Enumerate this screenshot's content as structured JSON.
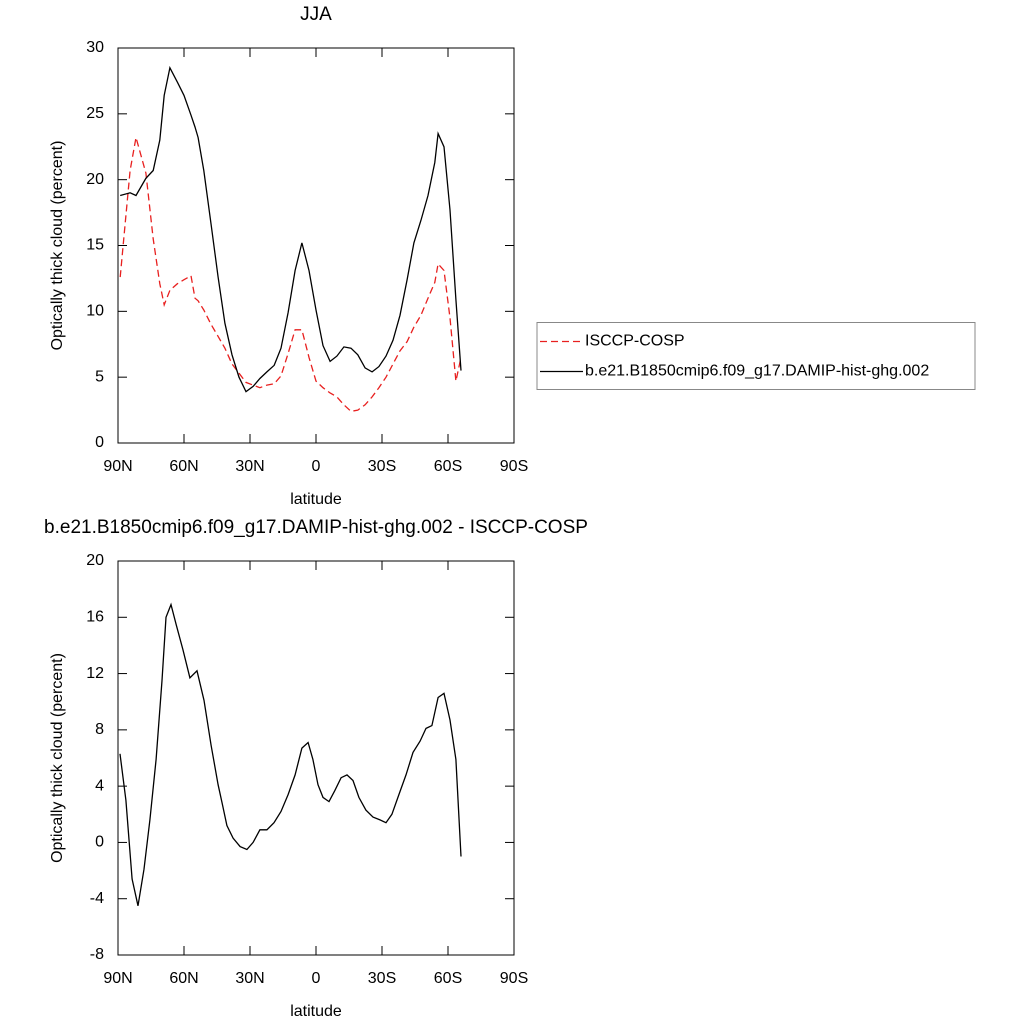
{
  "chart_data": [
    {
      "type": "line",
      "title": "JJA",
      "xlabel": "latitude",
      "ylabel": "Optically thick cloud (percent)",
      "x": [
        89,
        84.5,
        81.8,
        77.3,
        74,
        71,
        69,
        66.4,
        63,
        60,
        56.8,
        55,
        53.6,
        51,
        47.7,
        44.5,
        41.4,
        38.2,
        35,
        31.8,
        28.6,
        25.5,
        22.3,
        19,
        15.9,
        12.7,
        9.5,
        6.4,
        3.2,
        0,
        -3.2,
        -6.4,
        -9.5,
        -12.7,
        -15.9,
        -19,
        -22.3,
        -25.5,
        -28.6,
        -31.8,
        -35,
        -38.2,
        -41.4,
        -44.5,
        -47.7,
        -50.9,
        -54,
        -55.5,
        -58.2,
        -60.9,
        -63.6,
        -65.9
      ],
      "series": [
        {
          "name": "ISCCP-COSP",
          "color": "#e8201f",
          "linestyle": "dashed",
          "values": [
            12.6,
            20.7,
            23.2,
            20.5,
            15.5,
            12.1,
            10.5,
            11.6,
            12.1,
            12.4,
            12.7,
            11.0,
            10.8,
            10.1,
            9.0,
            8.1,
            7.2,
            6.0,
            5.3,
            4.6,
            4.4,
            4.2,
            4.4,
            4.5,
            5.1,
            6.8,
            8.6,
            8.6,
            6.5,
            4.7,
            4.2,
            3.8,
            3.5,
            2.9,
            2.4,
            2.5,
            2.9,
            3.5,
            4.2,
            5.0,
            6.0,
            7.0,
            7.7,
            8.8,
            9.7,
            11.0,
            12.2,
            13.6,
            13.1,
            9.5,
            4.7,
            6.5
          ]
        },
        {
          "name": "b.e21.B1850cmip6.f09_g17.DAMIP-hist-ghg.002",
          "color": "#000000",
          "linestyle": "solid",
          "values": [
            18.8,
            19.0,
            18.8,
            20.1,
            20.7,
            23,
            26.4,
            28.5,
            27.4,
            26.4,
            24.9,
            24.0,
            23.2,
            20.7,
            16.6,
            12.6,
            9.1,
            6.7,
            5.0,
            3.9,
            4.3,
            4.9,
            5.4,
            5.9,
            7.2,
            9.9,
            13.1,
            15.2,
            13.1,
            10.1,
            7.4,
            6.2,
            6.6,
            7.3,
            7.2,
            6.7,
            5.7,
            5.4,
            5.8,
            6.6,
            7.8,
            9.7,
            12.4,
            15.2,
            16.9,
            18.8,
            21.3,
            23.5,
            22.5,
            17.7,
            10.9,
            5.5
          ]
        }
      ],
      "xlim": [
        90,
        -90
      ],
      "xticks": [
        {
          "value": 90,
          "label": "90N"
        },
        {
          "value": 60,
          "label": "60N"
        },
        {
          "value": 30,
          "label": "30N"
        },
        0,
        {
          "value": -30,
          "label": "30S"
        },
        {
          "value": -60,
          "label": "60S"
        },
        {
          "value": -90,
          "label": "90S"
        }
      ],
      "ylim": [
        0,
        30
      ],
      "yticks": [
        0,
        5,
        10,
        15,
        20,
        25,
        30
      ],
      "legend": "right"
    },
    {
      "type": "line",
      "title": "b.e21.B1850cmip6.f09_g17.DAMIP-hist-ghg.002 - ISCCP-COSP",
      "xlabel": "latitude",
      "ylabel": "Optically thick cloud (percent)",
      "x": [
        89.1,
        86.4,
        83.6,
        80.9,
        78.2,
        75.5,
        72.7,
        70,
        68.2,
        65.9,
        63.6,
        60.5,
        57.3,
        54.1,
        50.9,
        47.7,
        44.5,
        42.7,
        40.5,
        37.7,
        34.5,
        31.4,
        28.6,
        25.5,
        22.3,
        19.1,
        15.9,
        12.7,
        9.5,
        6.4,
        3.6,
        1.4,
        -0.9,
        -3.2,
        -5.9,
        -8.6,
        -11.4,
        -14.1,
        -16.8,
        -19.5,
        -22.7,
        -25.9,
        -29.1,
        -31.8,
        -34.5,
        -37.7,
        -40.9,
        -44.1,
        -47.3,
        -50,
        -52.7,
        -55.5,
        -58.2,
        -60.9,
        -63.6,
        -65.9
      ],
      "series": [
        {
          "color": "#000000",
          "linestyle": "solid",
          "values": [
            6.3,
            3.0,
            -2.6,
            -4.5,
            -1.9,
            1.6,
            5.9,
            11.5,
            16.0,
            16.9,
            15.5,
            13.7,
            11.7,
            12.2,
            10.1,
            6.9,
            4.1,
            2.8,
            1.2,
            0.3,
            -0.3,
            -0.5,
            0.0,
            0.9,
            0.9,
            1.4,
            2.2,
            3.4,
            4.8,
            6.7,
            7.1,
            5.9,
            4.1,
            3.2,
            2.9,
            3.7,
            4.6,
            4.8,
            4.4,
            3.2,
            2.3,
            1.8,
            1.6,
            1.4,
            2.0,
            3.4,
            4.8,
            6.4,
            7.2,
            8.1,
            8.3,
            10.3,
            10.6,
            8.7,
            5.9,
            -1.0
          ]
        }
      ],
      "xlim": [
        90,
        -90
      ],
      "xticks": [
        {
          "value": 90,
          "label": "90N"
        },
        {
          "value": 60,
          "label": "60N"
        },
        {
          "value": 30,
          "label": "30N"
        },
        0,
        {
          "value": -30,
          "label": "30S"
        },
        {
          "value": -60,
          "label": "60S"
        },
        {
          "value": -90,
          "label": "90S"
        }
      ],
      "ylim": [
        -8,
        20
      ],
      "yticks": [
        -8,
        -4,
        0,
        4,
        8,
        12,
        16,
        20
      ]
    }
  ]
}
